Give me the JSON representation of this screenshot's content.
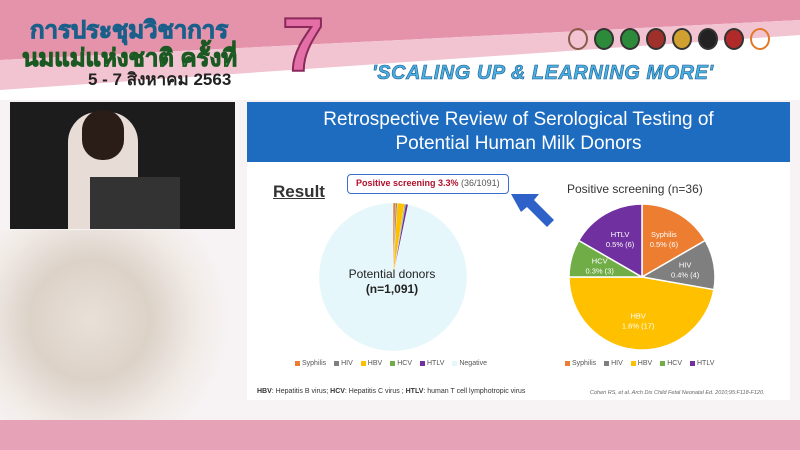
{
  "banner": {
    "title_line1": "การประชุมวิชาการ",
    "title_line2": "นมแม่แห่งชาติ ครั้งที่",
    "dates": "5 - 7 สิงหาคม 2563",
    "edition": "7",
    "slogan": "'SCALING UP & LEARNING MORE'"
  },
  "slide": {
    "title_line1": "Retrospective Review of Serological Testing of",
    "title_line2": "Potential Human Milk Donors",
    "result_heading": "Result",
    "callout_bold": "Positive screening 3.3%",
    "callout_rest": " (36/1091)",
    "left_label_1": "Potential donors",
    "left_label_2": "(n=1,091)",
    "footnote_parts": [
      "HBV",
      ": Hepatitis B virus; ",
      "HCV",
      ": Hepatitis C virus ; ",
      "HTLV",
      ": human T cell lymphotropic virus"
    ],
    "citation": "Cohen RS, et al. Arch Dis Child Fetal Neonatal Ed. 2010;95:F118-F120."
  },
  "chart_data": [
    {
      "type": "pie",
      "title": "",
      "categories": [
        "Syphilis",
        "HIV",
        "HBV",
        "HCV",
        "HTLV",
        "Negative"
      ],
      "values": [
        6,
        4,
        17,
        3,
        6,
        1055
      ],
      "colors": [
        "#ed7d31",
        "#7f7f7f",
        "#ffc000",
        "#70ad47",
        "#7030a0",
        "#e6f7fb"
      ],
      "legend": "bottom"
    },
    {
      "type": "pie",
      "title": "Positive screening (n=36)",
      "categories": [
        "Syphilis",
        "HIV",
        "HBV",
        "HCV",
        "HTLV"
      ],
      "values": [
        6,
        4,
        17,
        3,
        6
      ],
      "labels": [
        "0.5% (6)",
        "0.4% (4)",
        "1.6% (17)",
        "0.3% (3)",
        "0.5% (6)"
      ],
      "colors": [
        "#ed7d31",
        "#7f7f7f",
        "#ffc000",
        "#70ad47",
        "#7030a0"
      ],
      "legend": "bottom"
    }
  ]
}
